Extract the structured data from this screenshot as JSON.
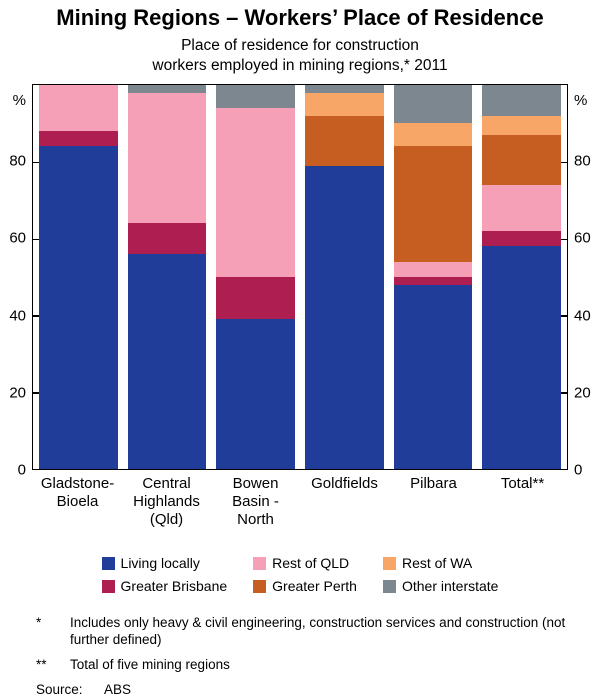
{
  "title": "Mining Regions – Workers’ Place of Residence",
  "subtitle": [
    "Place of residence for construction",
    "workers employed in mining regions,* 2011"
  ],
  "axis_unit": "%",
  "chart_data": {
    "type": "bar",
    "stacked": true,
    "title": "Place of residence for construction workers employed in mining regions, 2011",
    "ylabel": "%",
    "ylim": [
      0,
      100
    ],
    "yticks": [
      0,
      20,
      40,
      60,
      80
    ],
    "grid": false,
    "legend_position": "bottom",
    "categories": [
      "Gladstone-Bioela",
      "Central Highlands (Qld)",
      "Bowen Basin - North",
      "Goldfields",
      "Pilbara",
      "Total**"
    ],
    "category_label_lines": [
      [
        "Gladstone-",
        "Bioela"
      ],
      [
        "Central",
        "Highlands",
        "(Qld)"
      ],
      [
        "Bowen",
        "Basin -",
        "North"
      ],
      [
        "Goldfields"
      ],
      [
        "Pilbara"
      ],
      [
        "Total**"
      ]
    ],
    "series": [
      {
        "name": "Living locally",
        "color": "#1F3D99",
        "values": [
          84,
          56,
          39,
          79,
          48,
          58
        ]
      },
      {
        "name": "Greater Brisbane",
        "color": "#AE1E50",
        "values": [
          4,
          8,
          11,
          0,
          2,
          4
        ]
      },
      {
        "name": "Rest of QLD",
        "color": "#F5A0B6",
        "values": [
          12,
          34,
          44,
          0,
          4,
          12
        ]
      },
      {
        "name": "Greater Perth",
        "color": "#C65D21",
        "values": [
          0,
          0,
          0,
          13,
          30,
          13
        ]
      },
      {
        "name": "Rest of WA",
        "color": "#F7A668",
        "values": [
          0,
          0,
          0,
          6,
          6,
          5
        ]
      },
      {
        "name": "Other interstate",
        "color": "#7D8790",
        "values": [
          0,
          2,
          6,
          2,
          10,
          8
        ]
      }
    ]
  },
  "legend": {
    "items": [
      {
        "label": "Living locally",
        "color": "#1F3D99"
      },
      {
        "label": "Rest of QLD",
        "color": "#F5A0B6"
      },
      {
        "label": "Rest of WA",
        "color": "#F7A668"
      },
      {
        "label": "Greater Brisbane",
        "color": "#AE1E50"
      },
      {
        "label": "Greater Perth",
        "color": "#C65D21"
      },
      {
        "label": "Other interstate",
        "color": "#7D8790"
      }
    ]
  },
  "footnotes": [
    {
      "marker": "*",
      "text": "Includes only heavy & civil engineering, construction services and construction (not further defined)"
    },
    {
      "marker": "**",
      "text": "Total of five mining regions"
    }
  ],
  "source": {
    "label": "Source:",
    "value": "ABS"
  }
}
